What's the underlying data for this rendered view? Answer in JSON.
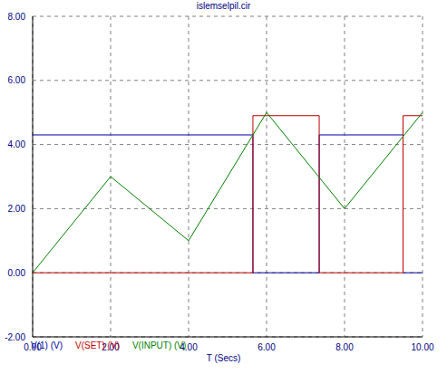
{
  "chart_data": {
    "type": "line",
    "title": "islemselpil.cir",
    "x_label": "T (Secs)",
    "xlim": [
      0,
      10
    ],
    "xticks": [
      {
        "value": 0,
        "label": "0.00"
      },
      {
        "value": 2,
        "label": "2.00"
      },
      {
        "value": 4,
        "label": "4.00"
      },
      {
        "value": 6,
        "label": "6.00"
      },
      {
        "value": 8,
        "label": "8.00"
      },
      {
        "value": 10,
        "label": "10.00"
      }
    ],
    "ylim": [
      -2,
      8
    ],
    "yticks": [
      {
        "value": -2,
        "label": "-2.00"
      },
      {
        "value": 0,
        "label": "0.00"
      },
      {
        "value": 2,
        "label": "2.00"
      },
      {
        "value": 4,
        "label": "4.00"
      },
      {
        "value": 6,
        "label": "6.00"
      },
      {
        "value": 8,
        "label": "8.00"
      }
    ],
    "grid": true,
    "legend": "bottom",
    "series": [
      {
        "name": "V(1) (V)",
        "color": "#0000a0",
        "x": [
          0,
          5.65,
          5.65,
          7.35,
          7.35,
          9.5,
          9.5,
          10
        ],
        "values": [
          4.3,
          4.3,
          0,
          0,
          4.3,
          4.3,
          0,
          0
        ]
      },
      {
        "name": "V(SET) (V)",
        "color": "#c00000",
        "x": [
          0,
          5.65,
          5.65,
          7.35,
          7.35,
          9.5,
          9.5,
          10
        ],
        "values": [
          0,
          0,
          4.9,
          4.9,
          0,
          0,
          4.9,
          4.9
        ]
      },
      {
        "name": "V(INPUT) (V)",
        "color": "#008000",
        "x": [
          0,
          2,
          4,
          6,
          8,
          10
        ],
        "values": [
          0,
          3,
          1,
          5,
          2,
          5
        ]
      }
    ]
  }
}
